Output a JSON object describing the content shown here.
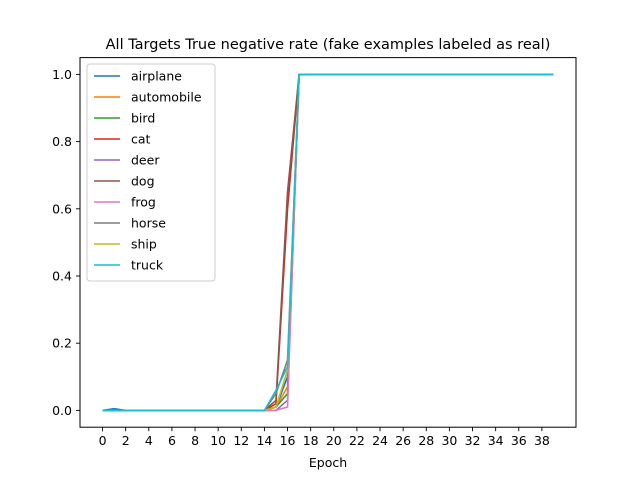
{
  "chart_data": {
    "type": "line",
    "title": "All Targets True negative rate (fake examples labeled as real)",
    "xlabel": "Epoch",
    "ylabel": "",
    "xlim": [
      -1.95,
      40.95
    ],
    "ylim": [
      -0.05,
      1.05
    ],
    "xticks": [
      0,
      2,
      4,
      6,
      8,
      10,
      12,
      14,
      16,
      18,
      20,
      22,
      24,
      26,
      28,
      30,
      32,
      34,
      36,
      38
    ],
    "yticks": [
      0.0,
      0.2,
      0.4,
      0.6,
      0.8,
      1.0
    ],
    "ytick_labels": [
      "0.0",
      "0.2",
      "0.4",
      "0.6",
      "0.8",
      "1.0"
    ],
    "grid": false,
    "legend_position": "upper-left",
    "x": [
      0,
      1,
      2,
      3,
      4,
      5,
      6,
      7,
      8,
      9,
      10,
      11,
      12,
      13,
      14,
      15,
      16,
      17,
      18,
      19,
      20,
      21,
      22,
      23,
      24,
      25,
      26,
      27,
      28,
      29,
      30,
      31,
      32,
      33,
      34,
      35,
      36,
      37,
      38,
      39
    ],
    "series": [
      {
        "name": "airplane",
        "color": "#1f77b4",
        "values": [
          0,
          0.005,
          0,
          0,
          0,
          0,
          0,
          0,
          0,
          0,
          0,
          0,
          0,
          0,
          0,
          0.01,
          0.1,
          1,
          1,
          1,
          1,
          1,
          1,
          1,
          1,
          1,
          1,
          1,
          1,
          1,
          1,
          1,
          1,
          1,
          1,
          1,
          1,
          1,
          1,
          1
        ]
      },
      {
        "name": "automobile",
        "color": "#ff7f0e",
        "values": [
          0,
          0,
          0,
          0,
          0,
          0,
          0,
          0,
          0,
          0,
          0,
          0,
          0,
          0,
          0,
          0.01,
          0.07,
          1,
          1,
          1,
          1,
          1,
          1,
          1,
          1,
          1,
          1,
          1,
          1,
          1,
          1,
          1,
          1,
          1,
          1,
          1,
          1,
          1,
          1,
          1
        ]
      },
      {
        "name": "bird",
        "color": "#2ca02c",
        "values": [
          0,
          0,
          0,
          0,
          0,
          0,
          0,
          0,
          0,
          0,
          0,
          0,
          0,
          0,
          0,
          0.01,
          0.05,
          1,
          1,
          1,
          1,
          1,
          1,
          1,
          1,
          1,
          1,
          1,
          1,
          1,
          1,
          1,
          1,
          1,
          1,
          1,
          1,
          1,
          1,
          1
        ]
      },
      {
        "name": "cat",
        "color": "#d62728",
        "values": [
          0,
          0,
          0,
          0,
          0,
          0,
          0,
          0,
          0,
          0,
          0,
          0,
          0,
          0,
          0,
          0.02,
          0.6,
          1,
          1,
          1,
          1,
          1,
          1,
          1,
          1,
          1,
          1,
          1,
          1,
          1,
          1,
          1,
          1,
          1,
          1,
          1,
          1,
          1,
          1,
          1
        ]
      },
      {
        "name": "deer",
        "color": "#9467bd",
        "values": [
          0,
          0,
          0,
          0,
          0,
          0,
          0,
          0,
          0,
          0,
          0,
          0,
          0,
          0,
          0,
          0,
          0.03,
          1,
          1,
          1,
          1,
          1,
          1,
          1,
          1,
          1,
          1,
          1,
          1,
          1,
          1,
          1,
          1,
          1,
          1,
          1,
          1,
          1,
          1,
          1
        ]
      },
      {
        "name": "dog",
        "color": "#8c564b",
        "values": [
          0,
          0,
          0,
          0,
          0,
          0,
          0,
          0,
          0,
          0,
          0,
          0,
          0,
          0,
          0,
          0.03,
          0.65,
          1,
          1,
          1,
          1,
          1,
          1,
          1,
          1,
          1,
          1,
          1,
          1,
          1,
          1,
          1,
          1,
          1,
          1,
          1,
          1,
          1,
          1,
          1
        ]
      },
      {
        "name": "frog",
        "color": "#e377c2",
        "values": [
          0,
          0,
          0,
          0,
          0,
          0,
          0,
          0,
          0,
          0,
          0,
          0,
          0,
          0,
          0,
          0,
          0.01,
          1,
          1,
          1,
          1,
          1,
          1,
          1,
          1,
          1,
          1,
          1,
          1,
          1,
          1,
          1,
          1,
          1,
          1,
          1,
          1,
          1,
          1,
          1
        ]
      },
      {
        "name": "horse",
        "color": "#7f7f7f",
        "values": [
          0,
          0,
          0,
          0,
          0,
          0,
          0,
          0,
          0,
          0,
          0,
          0,
          0,
          0,
          0,
          0.05,
          0.15,
          1,
          1,
          1,
          1,
          1,
          1,
          1,
          1,
          1,
          1,
          1,
          1,
          1,
          1,
          1,
          1,
          1,
          1,
          1,
          1,
          1,
          1,
          1
        ]
      },
      {
        "name": "ship",
        "color": "#bcbd22",
        "values": [
          0,
          0,
          0,
          0,
          0,
          0,
          0,
          0,
          0,
          0,
          0,
          0,
          0,
          0,
          0,
          0.01,
          0.12,
          1,
          1,
          1,
          1,
          1,
          1,
          1,
          1,
          1,
          1,
          1,
          1,
          1,
          1,
          1,
          1,
          1,
          1,
          1,
          1,
          1,
          1,
          1
        ]
      },
      {
        "name": "truck",
        "color": "#17becf",
        "values": [
          0,
          0,
          0,
          0,
          0,
          0,
          0,
          0,
          0,
          0,
          0,
          0,
          0,
          0,
          0,
          0.06,
          0.13,
          1,
          1,
          1,
          1,
          1,
          1,
          1,
          1,
          1,
          1,
          1,
          1,
          1,
          1,
          1,
          1,
          1,
          1,
          1,
          1,
          1,
          1,
          1
        ]
      }
    ]
  }
}
